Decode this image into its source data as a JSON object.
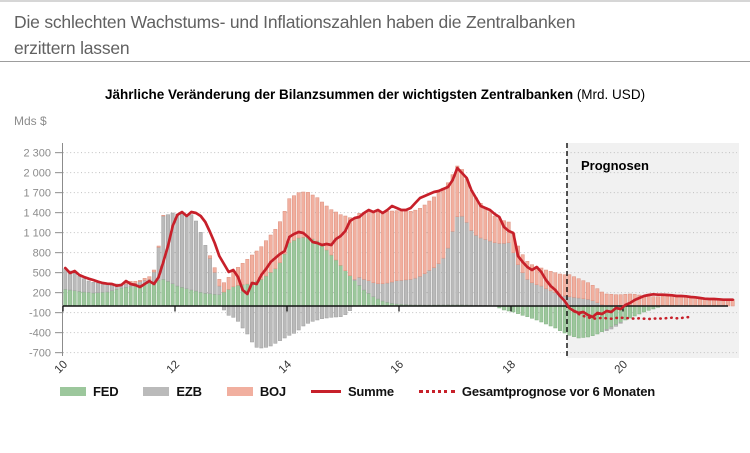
{
  "header": {
    "line1": "Die schlechten Wachstums- und Inflationszahlen haben die Zentralbanken",
    "line2": "erzittern lassen"
  },
  "chart": {
    "title_bold": "Jährliche Veränderung der Bilanzsummen der wichtigsten Zentralbanken",
    "title_suffix": " (Mrd. USD)",
    "unit_label": "Mds $",
    "forecast_label": "Prognosen",
    "colors": {
      "fed": "#9cc79c",
      "fed_border": "#83b183",
      "ezb": "#bababa",
      "ezb_border": "#9e9e9e",
      "boj": "#f1af9f",
      "boj_border": "#dd8f7d",
      "summe": "#c7202a",
      "forecast_dotted": "#c7202a",
      "forecast_band": "#f1f1f1",
      "grid": "#c0c0c0",
      "axis": "#8c8c8c",
      "zero_line": "#111111",
      "dashed_line": "#1a1a1a",
      "x_label": "#333333",
      "y_label": "#8c8c8c"
    }
  },
  "legend": {
    "items": [
      {
        "label": "FED",
        "type": "box",
        "series": "fed"
      },
      {
        "label": "EZB",
        "type": "box",
        "series": "ezb"
      },
      {
        "label": "BOJ",
        "type": "box",
        "series": "boj"
      },
      {
        "label": "Summe",
        "type": "line",
        "series": "summe"
      },
      {
        "label": "Gesamtprognose vor 6 Monaten",
        "type": "dotted",
        "series": "forecast"
      }
    ]
  },
  "chart_data": {
    "type": "bar",
    "subtype": "monthly stacked bars with line overlays",
    "title": "Jährliche Veränderung der Bilanzsummen der wichtigsten Zentralbanken (Mrd. USD)",
    "ylabel": "Mds $",
    "ylim": [
      -700,
      2300
    ],
    "grid": "dotted horizontal",
    "legend_position": "bottom",
    "start_month": "2010-01",
    "frequency": "monthly",
    "forecast_start_year": 2019.0,
    "x_ticks": [
      {
        "label": "10",
        "year": 2010
      },
      {
        "label": "12",
        "year": 2012
      },
      {
        "label": "14",
        "year": 2014
      },
      {
        "label": "16",
        "year": 2016
      },
      {
        "label": "18",
        "year": 2018
      },
      {
        "label": "20",
        "year": 2020
      }
    ],
    "y_ticks": [
      {
        "label": "2 300",
        "value": 2300
      },
      {
        "label": "2 000",
        "value": 2000
      },
      {
        "label": "1 700",
        "value": 1700
      },
      {
        "label": "1 400",
        "value": 1400
      },
      {
        "label": "1 100",
        "value": 1100
      },
      {
        "label": "800",
        "value": 800
      },
      {
        "label": "500",
        "value": 500
      },
      {
        "label": "200",
        "value": 200
      },
      {
        "label": "-100",
        "value": -100
      },
      {
        "label": "-400",
        "value": -400
      },
      {
        "label": "-700",
        "value": -700
      }
    ],
    "series": [
      {
        "name": "FED",
        "kind": "stacked-bar",
        "values": [
          250,
          240,
          230,
          220,
          210,
          205,
          195,
          200,
          205,
          210,
          230,
          250,
          270,
          280,
          290,
          300,
          315,
          330,
          340,
          360,
          380,
          400,
          370,
          335,
          300,
          280,
          260,
          240,
          225,
          205,
          190,
          185,
          175,
          170,
          210,
          250,
          290,
          310,
          320,
          330,
          355,
          375,
          400,
          450,
          505,
          560,
          650,
          780,
          950,
          985,
          1020,
          1030,
          1035,
          1005,
          975,
          910,
          840,
          765,
          690,
          610,
          530,
          455,
          380,
          310,
          240,
          190,
          140,
          105,
          75,
          55,
          40,
          30,
          25,
          22,
          20,
          18,
          16,
          15,
          15,
          16,
          17,
          18,
          19,
          20,
          20,
          18,
          16,
          14,
          12,
          11,
          10,
          5,
          0,
          -30,
          -60,
          -75,
          -90,
          -115,
          -140,
          -160,
          -185,
          -210,
          -240,
          -270,
          -300,
          -330,
          -370,
          -405,
          -440,
          -460,
          -480,
          -472,
          -465,
          -445,
          -420,
          -385,
          -350,
          -315,
          -280,
          -245,
          -210,
          -180,
          -150,
          -120,
          -90,
          -65,
          -45,
          -20,
          0,
          0,
          0,
          0,
          0,
          0,
          0,
          0,
          0,
          0,
          0,
          0,
          0,
          0,
          0,
          0
        ]
      },
      {
        "name": "EZB",
        "kind": "stacked-bar",
        "values": [
          310,
          285,
          260,
          230,
          200,
          170,
          160,
          145,
          130,
          120,
          100,
          80,
          60,
          50,
          40,
          40,
          50,
          55,
          60,
          150,
          500,
          950,
          1000,
          1060,
          1080,
          1110,
          1110,
          1130,
          1050,
          900,
          720,
          530,
          330,
          130,
          -60,
          -140,
          -170,
          -230,
          -330,
          -420,
          -540,
          -620,
          -630,
          -620,
          -600,
          -560,
          -520,
          -480,
          -440,
          -410,
          -360,
          -300,
          -260,
          -230,
          -210,
          -190,
          -180,
          -170,
          -165,
          -160,
          -130,
          -70,
          20,
          120,
          160,
          190,
          210,
          230,
          260,
          290,
          320,
          350,
          360,
          370,
          380,
          400,
          430,
          470,
          520,
          560,
          620,
          700,
          850,
          1100,
          1320,
          1330,
          1240,
          1120,
          1050,
          1010,
          990,
          970,
          950,
          940,
          940,
          950,
          800,
          620,
          500,
          400,
          350,
          320,
          300,
          260,
          230,
          200,
          170,
          150,
          140,
          130,
          120,
          110,
          100,
          80,
          50,
          20,
          -20,
          -30,
          -25,
          -15,
          0,
          0,
          0,
          0,
          0,
          0,
          0,
          0,
          0,
          0,
          0,
          0,
          0,
          0,
          0,
          0,
          0,
          0,
          0,
          0,
          0,
          0,
          0,
          0
        ]
      },
      {
        "name": "BOJ",
        "kind": "stacked-bar",
        "values": [
          0,
          0,
          0,
          0,
          0,
          0,
          0,
          0,
          0,
          0,
          0,
          0,
          0,
          20,
          40,
          30,
          20,
          30,
          40,
          30,
          20,
          10,
          0,
          0,
          0,
          0,
          0,
          0,
          0,
          0,
          0,
          40,
          70,
          100,
          140,
          180,
          220,
          270,
          320,
          370,
          410,
          450,
          490,
          530,
          560,
          590,
          615,
          640,
          660,
          670,
          680,
          680,
          670,
          660,
          650,
          650,
          660,
          680,
          720,
          760,
          820,
          870,
          920,
          960,
          1000,
          1040,
          1060,
          1075,
          1080,
          1075,
          1065,
          1050,
          1040,
          1030,
          1020,
          1020,
          1020,
          1030,
          1040,
          1060,
          1070,
          1050,
          980,
          850,
          760,
          700,
          650,
          600,
          560,
          520,
          480,
          440,
          400,
          370,
          340,
          310,
          290,
          280,
          270,
          270,
          270,
          270,
          270,
          280,
          290,
          300,
          310,
          320,
          330,
          310,
          290,
          270,
          250,
          230,
          210,
          190,
          180,
          175,
          170,
          170,
          175,
          180,
          175,
          165,
          155,
          145,
          140,
          140,
          145,
          150,
          150,
          145,
          140,
          135,
          130,
          125,
          120,
          115,
          115,
          110,
          110,
          105,
          105,
          100
        ]
      },
      {
        "name": "Summe",
        "kind": "line",
        "values": [
          570,
          495,
          525,
          465,
          435,
          410,
          390,
          365,
          345,
          335,
          330,
          305,
          315,
          375,
          330,
          315,
          285,
          330,
          375,
          330,
          435,
          660,
          900,
          1200,
          1365,
          1410,
          1350,
          1410,
          1395,
          1350,
          1260,
          1110,
          945,
          750,
          630,
          510,
          540,
          435,
          240,
          180,
          345,
          330,
          465,
          555,
          660,
          720,
          780,
          825,
          1035,
          1080,
          1110,
          1095,
          1035,
          960,
          945,
          915,
          930,
          915,
          1005,
          1050,
          1125,
          1275,
          1320,
          1335,
          1395,
          1440,
          1410,
          1440,
          1395,
          1440,
          1500,
          1470,
          1440,
          1440,
          1470,
          1545,
          1620,
          1650,
          1680,
          1710,
          1725,
          1755,
          1785,
          1890,
          2070,
          1995,
          1920,
          1740,
          1620,
          1500,
          1470,
          1440,
          1380,
          1335,
          1185,
          1125,
          1095,
          750,
          660,
          585,
          540,
          585,
          510,
          390,
          300,
          240,
          150,
          75,
          -30,
          -75,
          -105,
          -90,
          -135,
          -165,
          -105,
          -120,
          -75,
          -90,
          -30,
          -45,
          15,
          45,
          90,
          120,
          150,
          165,
          175,
          170,
          170,
          165,
          160,
          150,
          150,
          145,
          135,
          130,
          120,
          110,
          105,
          105,
          100,
          95,
          95,
          95
        ]
      },
      {
        "name": "Gesamtprognose vor 6 Monaten",
        "kind": "dotted-line",
        "values": [
          null,
          null,
          null,
          null,
          null,
          null,
          null,
          null,
          null,
          null,
          null,
          null,
          null,
          null,
          null,
          null,
          null,
          null,
          null,
          null,
          null,
          null,
          null,
          null,
          null,
          null,
          null,
          null,
          null,
          null,
          null,
          null,
          null,
          null,
          null,
          null,
          null,
          null,
          null,
          null,
          null,
          null,
          null,
          null,
          null,
          null,
          null,
          null,
          null,
          null,
          null,
          null,
          null,
          null,
          null,
          null,
          null,
          null,
          null,
          null,
          null,
          null,
          null,
          null,
          null,
          null,
          null,
          null,
          null,
          null,
          null,
          null,
          null,
          null,
          null,
          null,
          null,
          null,
          null,
          null,
          null,
          null,
          null,
          null,
          null,
          null,
          null,
          null,
          null,
          null,
          null,
          null,
          null,
          null,
          null,
          null,
          null,
          null,
          null,
          null,
          null,
          null,
          null,
          null,
          null,
          null,
          null,
          null,
          null,
          -80,
          -120,
          -150,
          -170,
          -190,
          -185,
          -180,
          -185,
          -190,
          -180,
          -175,
          -180,
          -185,
          -190,
          -185,
          -190,
          -195,
          -190,
          -185,
          -190,
          -180,
          -175,
          -185,
          -180,
          -170,
          -165,
          null,
          null,
          null,
          null,
          null,
          null,
          null,
          null,
          null
        ]
      }
    ]
  }
}
